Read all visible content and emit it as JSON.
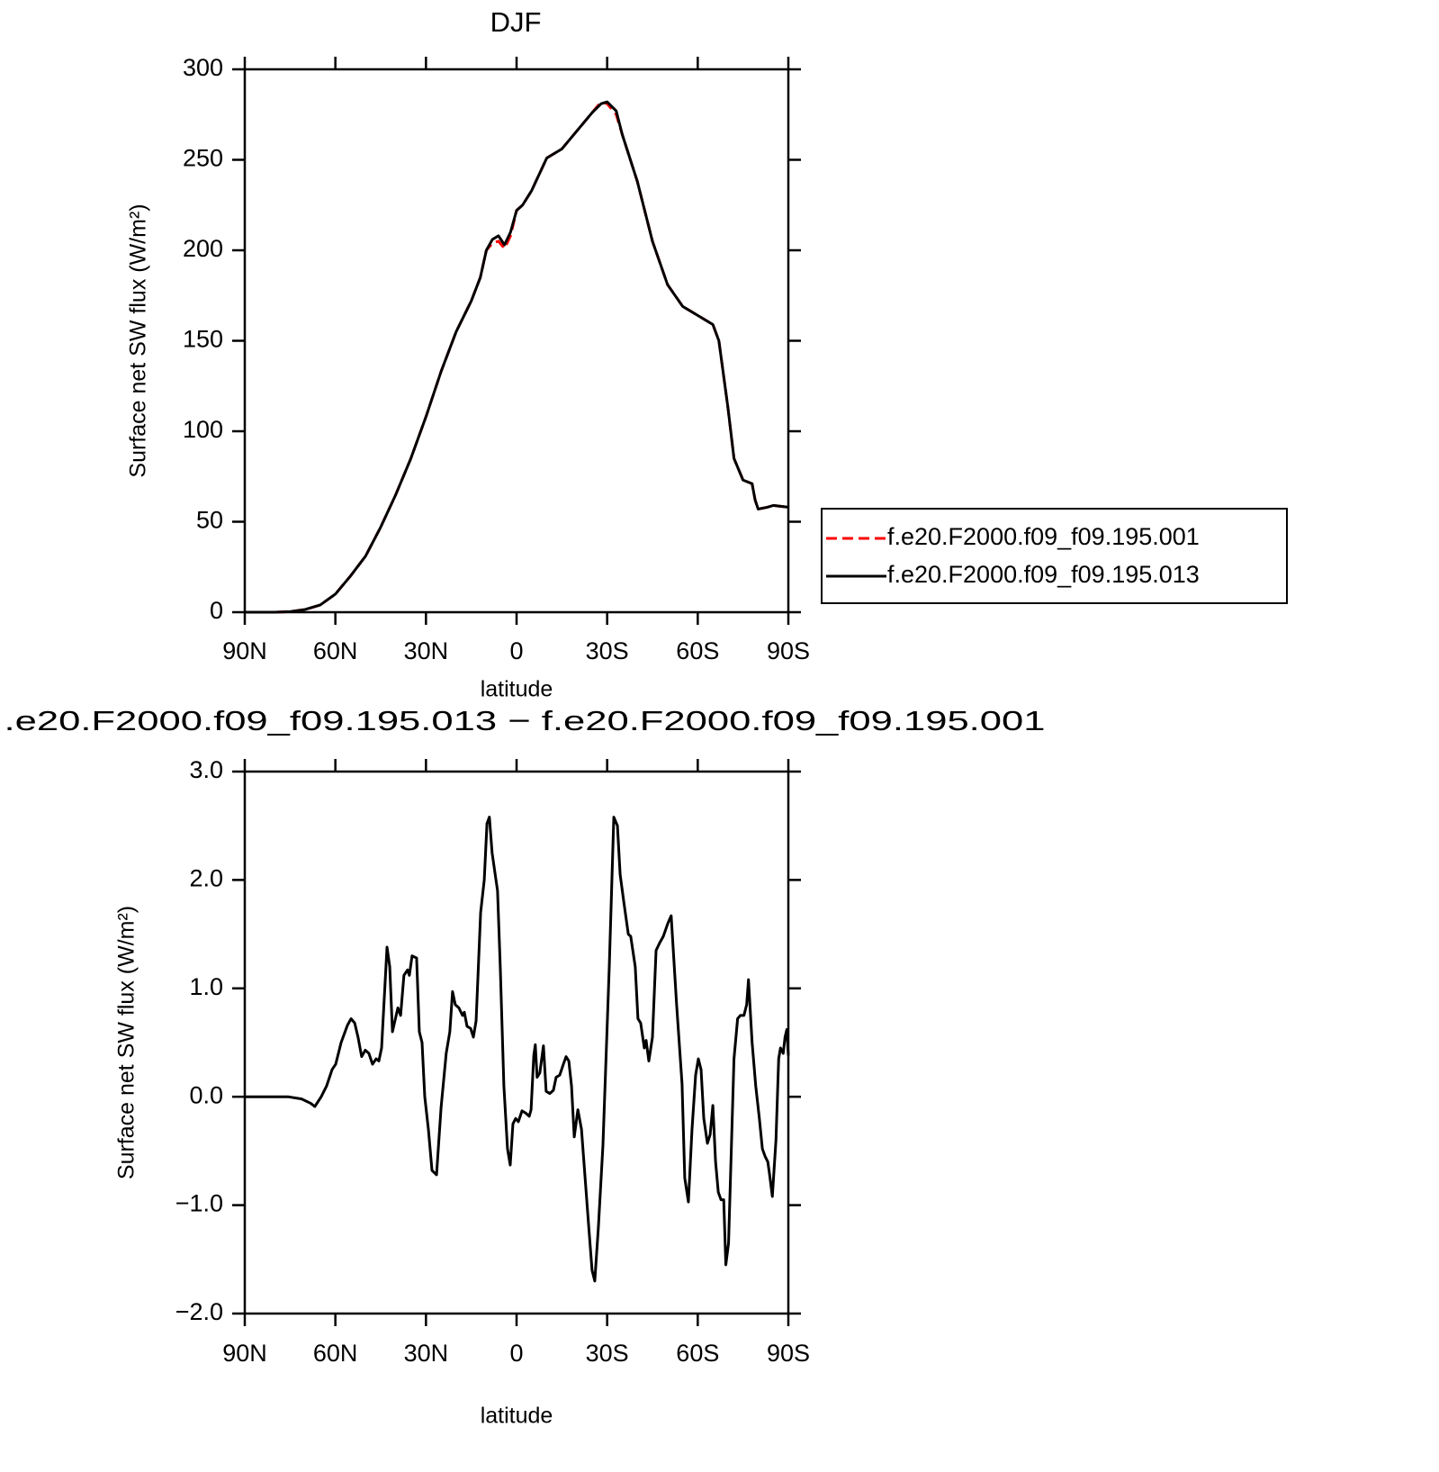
{
  "chart_data": [
    {
      "type": "line",
      "title": "DJF",
      "xlabel": "latitude",
      "ylabel": "Surface net SW flux (W/m²)",
      "x": [
        90,
        80,
        75,
        70,
        65,
        60,
        55,
        50,
        45,
        40,
        35,
        30,
        25,
        20,
        15,
        12,
        10,
        8,
        6,
        4,
        2,
        0,
        -2,
        -5,
        -10,
        -15,
        -20,
        -25,
        -28,
        -30,
        -33,
        -35,
        -40,
        -45,
        -50,
        -55,
        -60,
        -65,
        -67,
        -70,
        -72,
        -75,
        -78,
        -79,
        -80,
        -83,
        -85,
        -90
      ],
      "series": [
        {
          "name": "f.e20.F2000.f09_f09.195.001",
          "color": "#ff0000",
          "dashed": true,
          "values": [
            0,
            0,
            0.3,
            1.5,
            4,
            10,
            20,
            31,
            47,
            65,
            85,
            108,
            133,
            155,
            172,
            185,
            200,
            204,
            205,
            201,
            208,
            222,
            225,
            233,
            251,
            256,
            266,
            276,
            282,
            281,
            275,
            264,
            238,
            205,
            181,
            169,
            164,
            159,
            150,
            113,
            85,
            73,
            71,
            62,
            57,
            58,
            59,
            58
          ]
        },
        {
          "name": "f.e20.F2000.f09_f09.195.013",
          "color": "#000000",
          "dashed": false,
          "values": [
            0,
            0,
            0.3,
            1.5,
            4,
            10,
            20,
            31,
            47,
            65,
            85,
            108,
            133,
            155,
            172,
            185,
            200,
            206,
            208,
            203,
            210,
            222,
            225,
            233,
            251,
            256,
            266,
            276,
            281,
            282,
            277,
            264,
            238,
            205,
            181,
            169,
            164,
            159,
            150,
            113,
            85,
            73,
            71,
            62,
            57,
            58,
            59,
            58
          ]
        }
      ],
      "legend": "right",
      "xlim": [
        90,
        -90
      ],
      "xticks": [
        {
          "value": 90,
          "label": "90N"
        },
        {
          "value": 60,
          "label": "60N"
        },
        {
          "value": 30,
          "label": "30N"
        },
        0,
        {
          "value": -30,
          "label": "30S"
        },
        {
          "value": -60,
          "label": "60S"
        },
        {
          "value": -90,
          "label": "90S"
        }
      ],
      "ylim": [
        0,
        300
      ],
      "yticks": [
        0,
        50,
        100,
        150,
        200,
        250,
        300
      ]
    },
    {
      "type": "line",
      "title": ".e20.F2000.f09_f09.195.013 − f.e20.F2000.f09_f09.195.001",
      "xlabel": "latitude",
      "ylabel": "Surface net SW flux (W/m²)",
      "x": [
        90,
        75.7,
        71.2,
        68.2,
        66.8,
        64.7,
        62.9,
        61.1,
        59.9,
        58.1,
        56.0,
        54.8,
        53.6,
        52.5,
        51.3,
        50.1,
        48.9,
        47.7,
        46.5,
        45.6,
        44.7,
        42.9,
        42.0,
        41.1,
        39.3,
        38.4,
        37.3,
        36.1,
        35.5,
        34.6,
        33.1,
        32.2,
        31.3,
        30.4,
        29.2,
        28.0,
        26.5,
        25.0,
        23.3,
        22.1,
        21.2,
        20.3,
        19.1,
        17.9,
        17.3,
        16.4,
        15.2,
        14.3,
        13.4,
        11.9,
        10.7,
        9.8,
        9.0,
        8.1,
        6.3,
        5.4,
        4.2,
        3.0,
        2.1,
        1.2,
        0.3,
        -0.6,
        -1.8,
        -3.0,
        -4.2,
        -4.8,
        -5.7,
        -6.2,
        -6.8,
        -7.7,
        -8.9,
        -9.8,
        -11.0,
        -12.2,
        -13.1,
        -14.3,
        -15.5,
        -16.4,
        -17.3,
        -18.2,
        -19.1,
        -20.3,
        -21.5,
        -22.7,
        -23.9,
        -25.0,
        -25.9,
        -27.1,
        -28.6,
        -30.7,
        -32.2,
        -33.4,
        -34.3,
        -35.5,
        -37.0,
        -37.8,
        -39.3,
        -40.2,
        -41.1,
        -42.3,
        -42.9,
        -43.8,
        -45.0,
        -46.2,
        -47.4,
        -48.6,
        -50.1,
        -51.2,
        -53.0,
        -54.8,
        -55.7,
        -56.9,
        -58.1,
        -59.3,
        -60.2,
        -61.1,
        -62.0,
        -63.2,
        -64.1,
        -65.0,
        -65.9,
        -66.8,
        -67.7,
        -68.6,
        -69.3,
        -70.2,
        -71.1,
        -72.0,
        -73.2,
        -74.1,
        -75.3,
        -76.2,
        -76.8,
        -78.0,
        -79.2,
        -80.4,
        -81.4,
        -82.3,
        -83.2,
        -83.8,
        -84.7,
        -85.9,
        -86.8,
        -87.4,
        -88.3,
        -88.9,
        -89.5,
        -90
      ],
      "values": [
        0,
        0,
        -0.02,
        -0.06,
        -0.09,
        0,
        0.1,
        0.25,
        0.3,
        0.5,
        0.66,
        0.72,
        0.68,
        0.55,
        0.37,
        0.43,
        0.4,
        0.3,
        0.35,
        0.33,
        0.45,
        1.38,
        1.2,
        0.6,
        0.82,
        0.75,
        1.12,
        1.17,
        1.12,
        1.3,
        1.28,
        0.6,
        0.5,
        0,
        -0.3,
        -0.68,
        -0.72,
        -0.1,
        0.4,
        0.6,
        0.97,
        0.85,
        0.82,
        0.75,
        0.78,
        0.65,
        0.63,
        0.55,
        0.7,
        1.7,
        2.0,
        2.52,
        2.58,
        2.25,
        1.9,
        1.2,
        0.1,
        -0.48,
        -0.63,
        -0.25,
        -0.2,
        -0.23,
        -0.13,
        -0.15,
        -0.18,
        -0.12,
        0.38,
        0.48,
        0.18,
        0.22,
        0.47,
        0.05,
        0.03,
        0.06,
        0.18,
        0.2,
        0.3,
        0.37,
        0.33,
        0.1,
        -0.37,
        -0.12,
        -0.3,
        -0.75,
        -1.2,
        -1.6,
        -1.7,
        -1.2,
        -0.45,
        1.2,
        2.58,
        2.5,
        2.05,
        1.8,
        1.5,
        1.48,
        1.2,
        0.72,
        0.68,
        0.45,
        0.52,
        0.33,
        0.55,
        1.35,
        1.42,
        1.48,
        1.6,
        1.67,
        0.85,
        0.12,
        -0.75,
        -0.97,
        -0.3,
        0.2,
        0.35,
        0.25,
        -0.2,
        -0.43,
        -0.35,
        -0.08,
        -0.6,
        -0.88,
        -0.95,
        -0.95,
        -1.55,
        -1.35,
        -0.5,
        0.35,
        0.72,
        0.75,
        0.75,
        0.85,
        1.08,
        0.5,
        0.1,
        -0.2,
        -0.48,
        -0.55,
        -0.6,
        -0.72,
        -0.92,
        -0.4,
        0.35,
        0.45,
        0.4,
        0.55,
        0.62,
        0.38
      ],
      "color": "#000000",
      "xlim": [
        90,
        -90
      ],
      "xticks": [
        {
          "value": 90,
          "label": "90N"
        },
        {
          "value": 60,
          "label": "60N"
        },
        {
          "value": 30,
          "label": "30N"
        },
        0,
        {
          "value": -30,
          "label": "30S"
        },
        {
          "value": -60,
          "label": "60S"
        },
        {
          "value": -90,
          "label": "90S"
        }
      ],
      "ylim": [
        -2,
        3
      ],
      "yticks": [
        {
          "value": -2,
          "label": "−2.0"
        },
        {
          "value": -1,
          "label": "−1.0"
        },
        {
          "value": 0,
          "label": "0.0"
        },
        {
          "value": 1,
          "label": "1.0"
        },
        {
          "value": 2,
          "label": "2.0"
        },
        {
          "value": 3,
          "label": "3.0"
        }
      ]
    }
  ]
}
